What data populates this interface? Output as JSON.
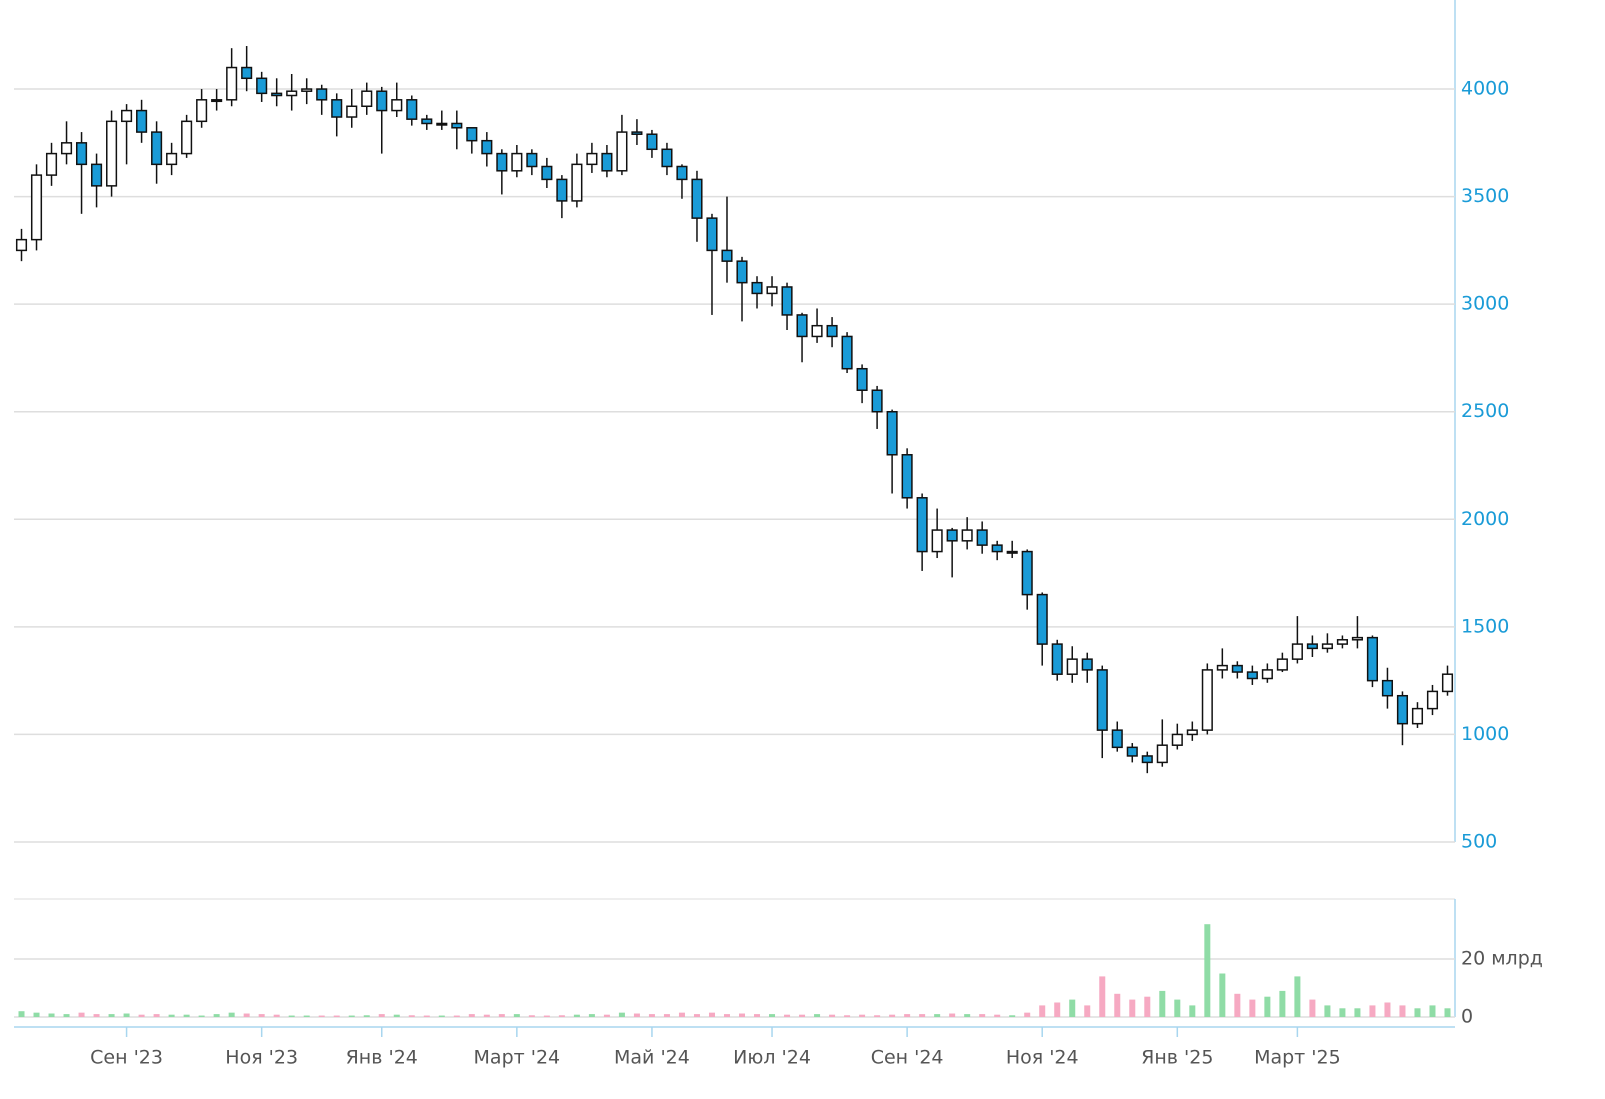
{
  "chart_data": {
    "type": "candlestick",
    "categories": [
      null,
      null,
      null,
      null,
      null,
      null,
      null,
      "Сен '23",
      null,
      null,
      null,
      null,
      null,
      null,
      null,
      null,
      "Ноя '23",
      null,
      null,
      null,
      null,
      null,
      null,
      null,
      "Янв '24",
      null,
      null,
      null,
      null,
      null,
      null,
      null,
      null,
      "Март '24",
      null,
      null,
      null,
      null,
      null,
      null,
      null,
      null,
      "Май '24",
      null,
      null,
      null,
      null,
      null,
      null,
      null,
      "Июл '24",
      null,
      null,
      null,
      null,
      null,
      null,
      null,
      null,
      "Сен '24",
      null,
      null,
      null,
      null,
      null,
      null,
      null,
      null,
      "Ноя '24",
      null,
      null,
      null,
      null,
      null,
      null,
      null,
      null,
      "Янв '25",
      null,
      null,
      null,
      null,
      null,
      null,
      null,
      "Март '25",
      null,
      null,
      null,
      null,
      null,
      null,
      null,
      null,
      null,
      null
    ],
    "open": [
      3250,
      3300,
      3600,
      3700,
      3750,
      3650,
      3550,
      3850,
      3900,
      3800,
      3650,
      3700,
      3850,
      3950,
      3950,
      4100,
      4050,
      3980,
      3970,
      3990,
      4000,
      3950,
      3870,
      3920,
      3990,
      3900,
      3950,
      3860,
      3840,
      3840,
      3820,
      3760,
      3700,
      3620,
      3700,
      3640,
      3580,
      3480,
      3650,
      3700,
      3620,
      3800,
      3790,
      3720,
      3640,
      3580,
      3400,
      3250,
      3200,
      3100,
      3050,
      3080,
      2950,
      2850,
      2900,
      2850,
      2700,
      2600,
      2500,
      2300,
      2100,
      1850,
      1950,
      1900,
      1950,
      1880,
      1850,
      1850,
      1650,
      1420,
      1280,
      1350,
      1300,
      1020,
      940,
      900,
      870,
      950,
      1000,
      1020,
      1300,
      1320,
      1290,
      1260,
      1300,
      1350,
      1420,
      1400,
      1420,
      1440,
      1450,
      1250,
      1180,
      1050,
      1120,
      1200
    ],
    "high": [
      3350,
      3650,
      3750,
      3850,
      3800,
      3700,
      3900,
      3930,
      3950,
      3850,
      3750,
      3880,
      4000,
      4000,
      4190,
      4200,
      4080,
      4050,
      4070,
      4050,
      4020,
      3980,
      4000,
      4030,
      4010,
      4030,
      3970,
      3880,
      3900,
      3900,
      3810,
      3800,
      3720,
      3740,
      3720,
      3680,
      3600,
      3700,
      3750,
      3740,
      3880,
      3860,
      3810,
      3750,
      3650,
      3620,
      3420,
      3500,
      3220,
      3130,
      3130,
      3100,
      2960,
      2980,
      2940,
      2870,
      2720,
      2620,
      2510,
      2330,
      2120,
      2050,
      1960,
      2010,
      1990,
      1900,
      1900,
      1860,
      1660,
      1440,
      1410,
      1380,
      1320,
      1060,
      960,
      920,
      1070,
      1050,
      1060,
      1330,
      1400,
      1340,
      1320,
      1330,
      1380,
      1550,
      1460,
      1470,
      1460,
      1550,
      1460,
      1310,
      1200,
      1150,
      1230,
      1320
    ],
    "low": [
      3200,
      3250,
      3550,
      3650,
      3420,
      3450,
      3500,
      3650,
      3750,
      3560,
      3600,
      3680,
      3820,
      3900,
      3920,
      3990,
      3940,
      3920,
      3900,
      3930,
      3880,
      3780,
      3820,
      3880,
      3700,
      3870,
      3830,
      3810,
      3810,
      3720,
      3700,
      3640,
      3510,
      3590,
      3600,
      3540,
      3400,
      3450,
      3610,
      3590,
      3600,
      3740,
      3680,
      3600,
      3490,
      3290,
      2950,
      3100,
      2920,
      2980,
      2990,
      2880,
      2730,
      2820,
      2800,
      2680,
      2540,
      2420,
      2120,
      2050,
      1760,
      1820,
      1730,
      1860,
      1840,
      1810,
      1820,
      1580,
      1320,
      1250,
      1240,
      1240,
      890,
      920,
      870,
      820,
      850,
      930,
      970,
      1000,
      1260,
      1260,
      1230,
      1240,
      1290,
      1330,
      1360,
      1380,
      1400,
      1400,
      1220,
      1120,
      950,
      1030,
      1090,
      1180
    ],
    "close": [
      3300,
      3600,
      3700,
      3750,
      3650,
      3550,
      3850,
      3900,
      3800,
      3650,
      3700,
      3850,
      3950,
      3950,
      4100,
      4050,
      3980,
      3970,
      3990,
      4000,
      3950,
      3870,
      3920,
      3990,
      3900,
      3950,
      3860,
      3840,
      3840,
      3820,
      3760,
      3700,
      3620,
      3700,
      3640,
      3580,
      3480,
      3650,
      3700,
      3620,
      3800,
      3790,
      3720,
      3640,
      3580,
      3400,
      3250,
      3200,
      3100,
      3050,
      3080,
      2950,
      2850,
      2900,
      2850,
      2700,
      2600,
      2500,
      2300,
      2100,
      1850,
      1950,
      1900,
      1950,
      1880,
      1850,
      1850,
      1650,
      1420,
      1280,
      1350,
      1300,
      1020,
      940,
      900,
      870,
      950,
      1000,
      1020,
      1300,
      1320,
      1290,
      1260,
      1300,
      1350,
      1420,
      1400,
      1420,
      1440,
      1450,
      1250,
      1180,
      1050,
      1120,
      1200,
      1280
    ],
    "volume": [
      2,
      1.5,
      1.2,
      1,
      1.5,
      1,
      1,
      1.2,
      0.8,
      1,
      0.8,
      0.8,
      0.5,
      1,
      1.5,
      1.2,
      1,
      0.8,
      0.5,
      0.5,
      0.5,
      0.5,
      0.5,
      0.6,
      1,
      0.8,
      0.6,
      0.5,
      0.5,
      0.5,
      1,
      0.8,
      1,
      1,
      0.6,
      0.5,
      0.6,
      0.8,
      1,
      0.8,
      1.5,
      1.2,
      1,
      1,
      1.5,
      1,
      1.5,
      1,
      1.2,
      1,
      1,
      0.8,
      0.8,
      1,
      0.8,
      0.6,
      0.8,
      0.6,
      0.8,
      1,
      1,
      1,
      1.2,
      1,
      1,
      0.8,
      0.6,
      1.5,
      4,
      5,
      6,
      4,
      14,
      8,
      6,
      7,
      9,
      6,
      4,
      32,
      15,
      8,
      6,
      7,
      9,
      14,
      6,
      4,
      3,
      3,
      4,
      5,
      4,
      3,
      4,
      3
    ],
    "up_color": "#ffffff",
    "down_color": "#1a9bd7",
    "volume_up_color": "#8fdca6",
    "volume_down_color": "#f6a9c2",
    "ylim": [
      500,
      4400
    ],
    "yticks": [
      500,
      1000,
      1500,
      2000,
      2500,
      3000,
      3500,
      4000
    ],
    "volume_ylim": [
      0,
      40
    ],
    "volume_yticks": [
      0,
      {
        "value": 20,
        "label": "20 млрд"
      }
    ],
    "grid": true
  }
}
